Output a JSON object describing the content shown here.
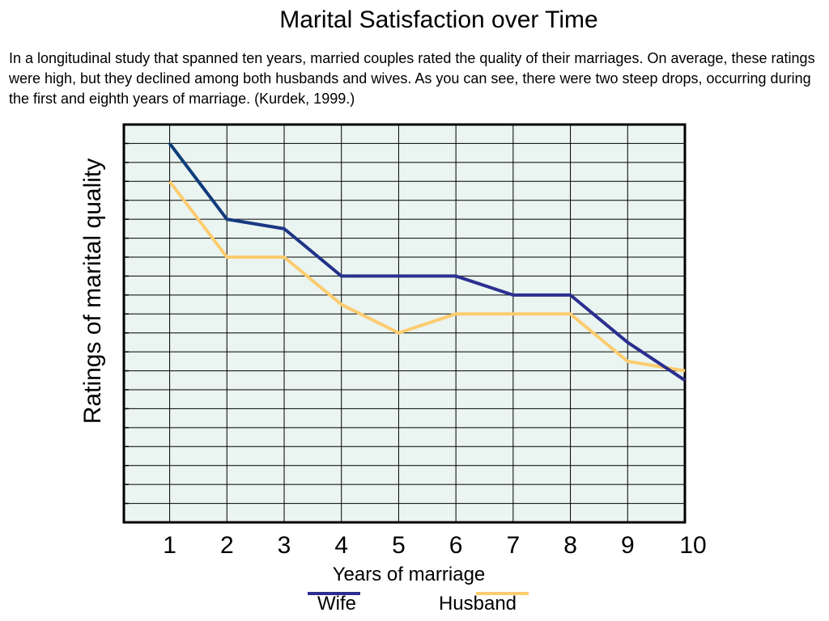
{
  "title": "Marital Satisfaction over Time",
  "description": "In a longitudinal study that spanned ten years, married couples rated the quality of their marriages. On average, these ratings were high, but they declined among both husbands and wives. As you can see, there were two steep drops, occurring during the first and eighth years of marriage. (Kurdek, 1999.)",
  "chart_data": {
    "type": "line",
    "title": "Marital Satisfaction over Time",
    "xlabel": "Years of marriage",
    "ylabel": "Ratings of marital quality",
    "x": [
      1,
      2,
      3,
      4,
      5,
      6,
      7,
      8,
      9,
      10
    ],
    "xlim": [
      0.2,
      10
    ],
    "ylim": [
      0,
      21
    ],
    "grid": true,
    "legend_position": "bottom",
    "series": [
      {
        "name": "Wife",
        "color": "#2b2f8f",
        "start_color": "#0b3f78",
        "values": [
          20,
          16,
          15.5,
          13,
          13,
          13,
          12,
          12,
          9.5,
          7.5
        ]
      },
      {
        "name": "Husband",
        "color": "#fccc6e",
        "values": [
          18,
          14,
          14,
          11.5,
          10,
          11,
          11,
          11,
          8.5,
          8
        ]
      }
    ]
  }
}
